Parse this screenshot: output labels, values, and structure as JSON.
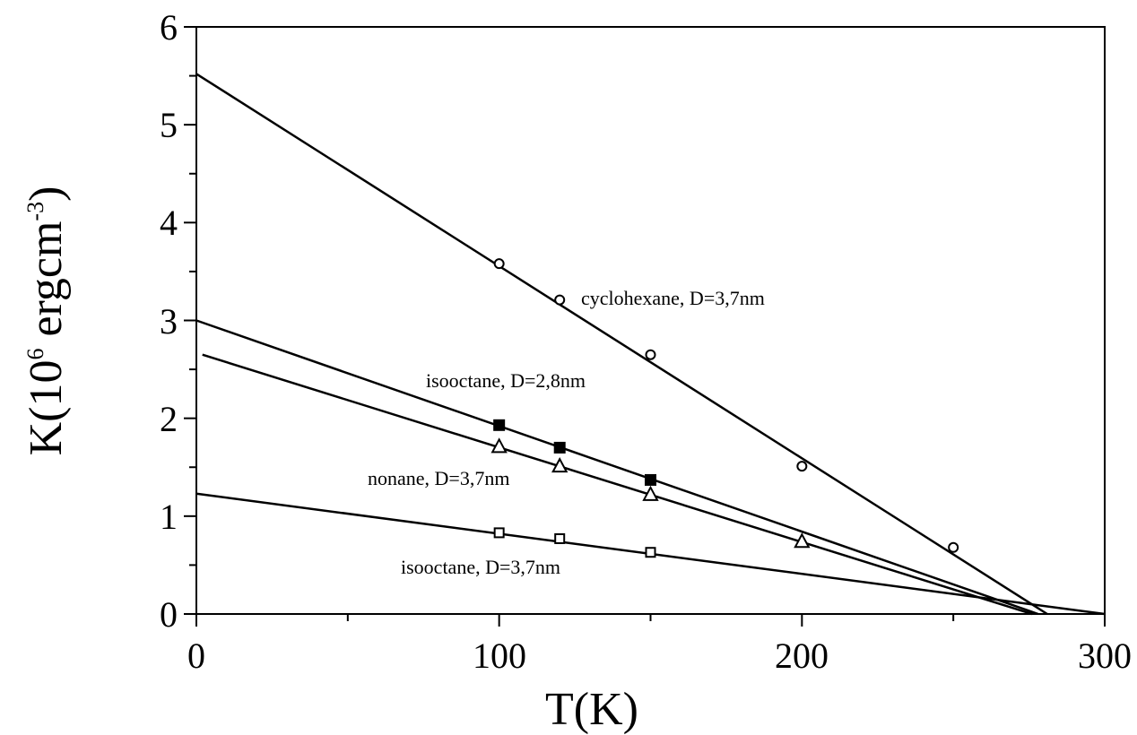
{
  "chart_data": {
    "type": "scatter",
    "xlabel": "T(K)",
    "ylabel_parts": [
      "K(10",
      "6",
      " ergcm",
      "-3",
      ")"
    ],
    "xlim": [
      0,
      300
    ],
    "ylim": [
      0,
      6
    ],
    "x_ticks": [
      0,
      100,
      200,
      300
    ],
    "y_ticks": [
      0,
      1,
      2,
      3,
      4,
      5,
      6
    ],
    "x_tick_labels": [
      "0",
      "100",
      "200",
      "300"
    ],
    "y_tick_labels": [
      "0",
      "1",
      "2",
      "3",
      "4",
      "5",
      "6"
    ],
    "grid": false,
    "legend": "none",
    "series": [
      {
        "label": "cyclohexane, D=3,7nm",
        "marker": "open-circle",
        "x": [
          100,
          120,
          150,
          200,
          250
        ],
        "y": [
          3.58,
          3.21,
          2.65,
          1.51,
          0.68
        ],
        "fit": {
          "x": [
            0,
            281
          ],
          "y": [
            5.52,
            0
          ]
        }
      },
      {
        "label": "isooctane, D=2,8nm",
        "marker": "filled-square",
        "x": [
          100,
          120,
          150
        ],
        "y": [
          1.93,
          1.7,
          1.37
        ],
        "fit": {
          "x": [
            0,
            278
          ],
          "y": [
            3.0,
            0
          ]
        }
      },
      {
        "label": "nonane, D=3,7nm",
        "marker": "open-triangle",
        "x": [
          100,
          120,
          150,
          200
        ],
        "y": [
          1.71,
          1.51,
          1.22,
          0.74
        ],
        "fit": {
          "x": [
            2,
            276
          ],
          "y": [
            2.65,
            0
          ]
        }
      },
      {
        "label": "isooctane, D=3,7nm",
        "marker": "open-square",
        "x": [
          100,
          120,
          150
        ],
        "y": [
          0.83,
          0.77,
          0.63
        ],
        "fit": {
          "x": [
            0,
            300
          ],
          "y": [
            1.23,
            0
          ]
        }
      }
    ]
  }
}
